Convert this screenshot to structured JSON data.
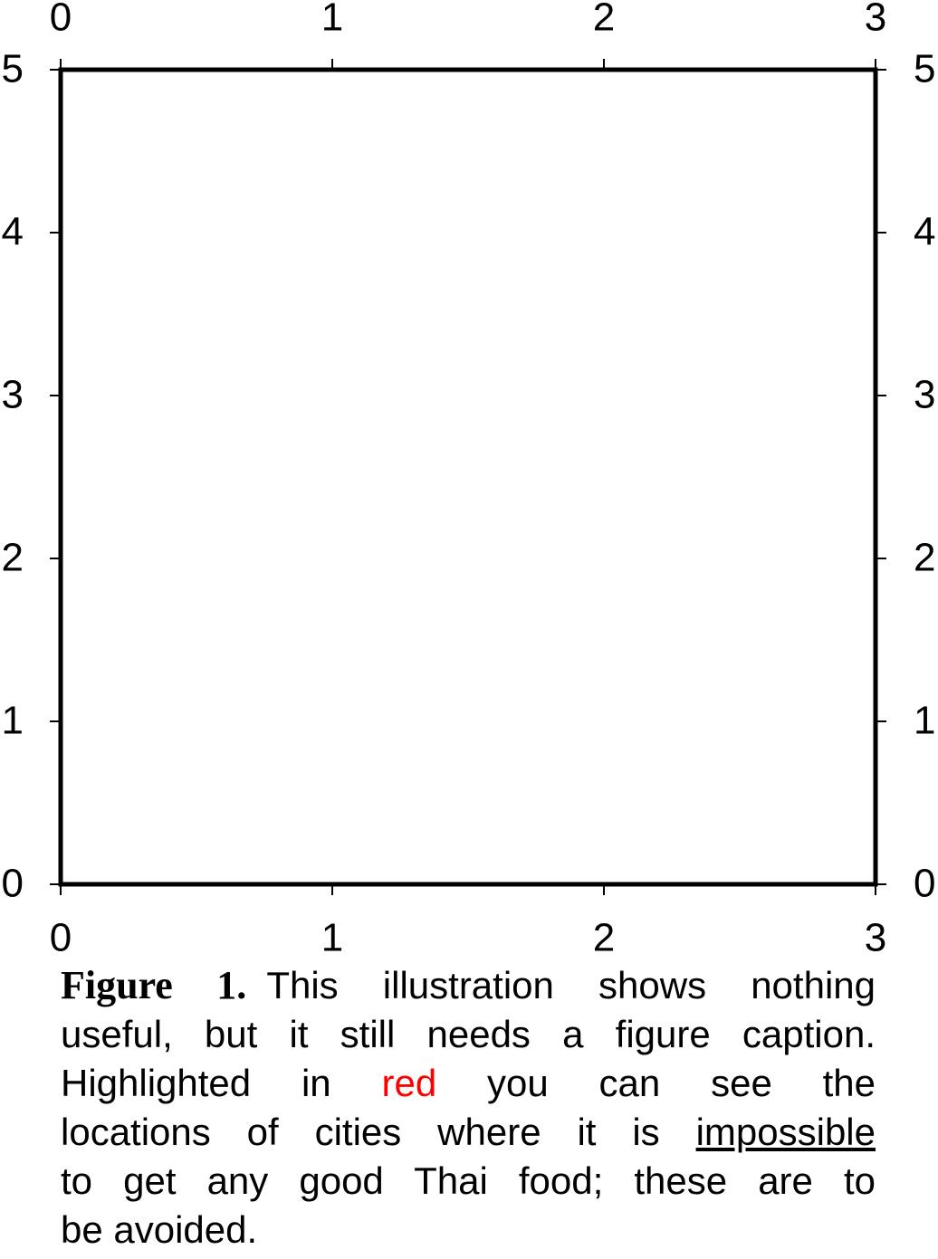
{
  "chart_data": {
    "type": "frame",
    "xlim": [
      0,
      3
    ],
    "ylim": [
      0,
      5
    ],
    "xticks": [
      0,
      1,
      2,
      3
    ],
    "yticks": [
      0,
      1,
      2,
      3,
      4,
      5
    ],
    "frame_color": "#000000",
    "caption": {
      "lines": [
        [
          {
            "text": "Figure 1.",
            "weight": "bold"
          },
          {
            "text": "This illustration shows nothing"
          }
        ],
        [
          {
            "text": "useful, but it still needs a figure caption."
          }
        ],
        [
          {
            "text": "Highlighted in "
          },
          {
            "text": "red",
            "color": "#ff0000"
          },
          {
            "text": " you can see the"
          }
        ],
        [
          {
            "text": "locations of cities where it is "
          },
          {
            "text": "impossible",
            "underline": true
          }
        ],
        [
          {
            "text": "to get any good Thai food; these are to"
          }
        ],
        [
          {
            "text": "be avoided."
          }
        ]
      ]
    }
  }
}
